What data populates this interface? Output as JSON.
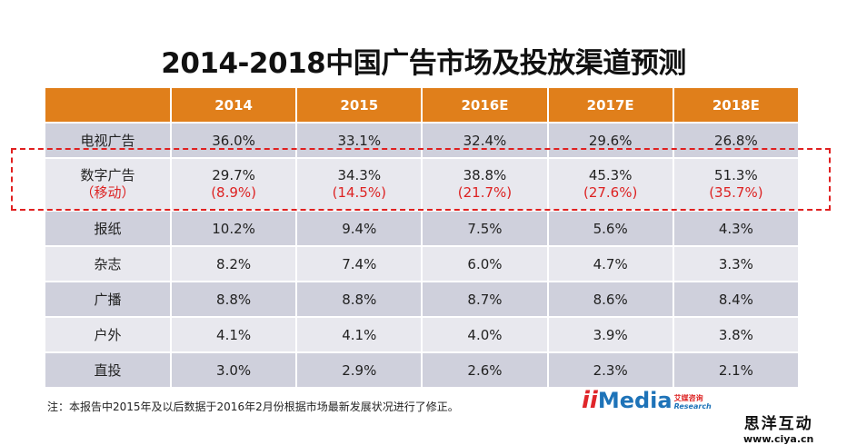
{
  "title": "2014-2018中国广告市场及投放渠道预测",
  "table": {
    "headers": [
      "",
      "2014",
      "2015",
      "2016E",
      "2017E",
      "2018E"
    ],
    "rows": [
      {
        "label": "电视广告",
        "values": [
          "36.0%",
          "33.1%",
          "32.4%",
          "29.6%",
          "26.8%"
        ]
      },
      {
        "label": "数字广告",
        "sublabel": "（移动）",
        "values": [
          "29.7%",
          "34.3%",
          "38.8%",
          "45.3%",
          "51.3%"
        ],
        "subvalues": [
          "(8.9%)",
          "(14.5%)",
          "(21.7%)",
          "(27.6%)",
          "(35.7%)"
        ]
      },
      {
        "label": "报纸",
        "values": [
          "10.2%",
          "9.4%",
          "7.5%",
          "5.6%",
          "4.3%"
        ]
      },
      {
        "label": "杂志",
        "values": [
          "8.2%",
          "7.4%",
          "6.0%",
          "4.7%",
          "3.3%"
        ]
      },
      {
        "label": "广播",
        "values": [
          "8.8%",
          "8.8%",
          "8.7%",
          "8.6%",
          "8.4%"
        ]
      },
      {
        "label": "户外",
        "values": [
          "4.1%",
          "4.1%",
          "4.0%",
          "3.9%",
          "3.8%"
        ]
      },
      {
        "label": "直投",
        "values": [
          "3.0%",
          "2.9%",
          "2.6%",
          "2.3%",
          "2.1%"
        ]
      }
    ]
  },
  "note": "注：本报告中2015年及以后数据于2016年2月份根据市场最新发展状况进行了修正。",
  "logo": {
    "mark": "ii",
    "name": "Media",
    "cn": "艾媒咨询",
    "en": "Research"
  },
  "watermark": {
    "cn": "思洋互动",
    "url": "www.ciya.cn"
  },
  "colors": {
    "header": "#e07f1b",
    "highlight": "#e02020"
  }
}
